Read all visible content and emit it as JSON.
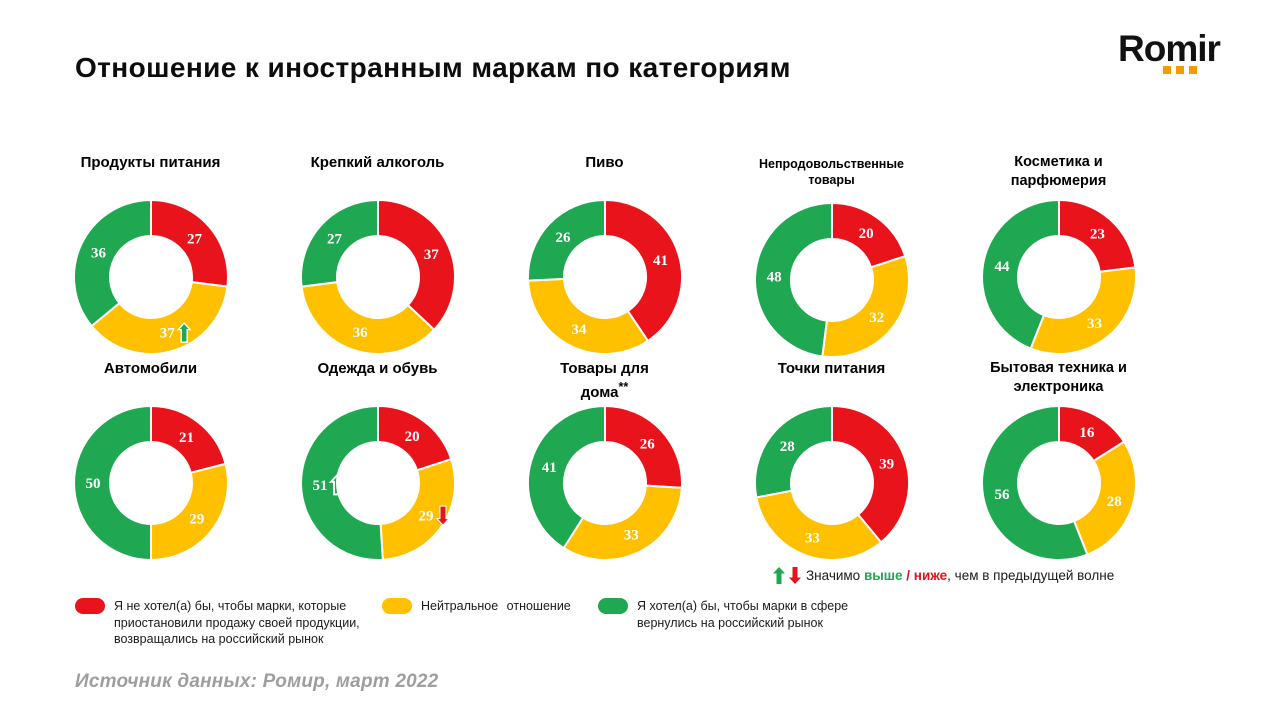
{
  "slide": {
    "title": "Отношение к иностранным маркам по категориям",
    "logo_text": "Romir",
    "source": "Источник данных: Ромир, март 2022"
  },
  "colors": {
    "negative": "#E8131B",
    "neutral": "#FFC000",
    "positive": "#1FA751",
    "logo_dot": "#F59B00"
  },
  "chart_data": {
    "type": "pie",
    "subtype": "donut-small-multiples",
    "title": "Отношение к иностранным маркам по категориям",
    "unit": "percent",
    "start_angle": "top",
    "direction": "clockwise",
    "slice_order": [
      "negative",
      "neutral",
      "positive"
    ],
    "slice_colors": {
      "negative": "#E8131B",
      "neutral": "#FFC000",
      "positive": "#1FA751"
    },
    "legend_position": "bottom",
    "charts": [
      {
        "title_lines": [
          "Продукты питания"
        ],
        "values": {
          "negative": 27,
          "neutral": 37,
          "positive": 36
        },
        "arrows": [
          {
            "slice": "neutral",
            "dir": "up",
            "style": "green-filled"
          }
        ]
      },
      {
        "title_lines": [
          "Крепкий алкоголь"
        ],
        "values": {
          "negative": 37,
          "neutral": 36,
          "positive": 27
        },
        "arrows": []
      },
      {
        "title_lines": [
          "Пиво"
        ],
        "values": {
          "negative": 41,
          "neutral": 34,
          "positive": 26
        },
        "arrows": []
      },
      {
        "title_lines": [
          "Непродовольственные",
          "товары"
        ],
        "values": {
          "negative": 20,
          "neutral": 32,
          "positive": 48
        },
        "arrows": []
      },
      {
        "title_lines": [
          "Косметика и",
          "парфюмерия"
        ],
        "values": {
          "negative": 23,
          "neutral": 33,
          "positive": 44
        },
        "arrows": []
      },
      {
        "title_lines": [
          "Автомобили"
        ],
        "values": {
          "negative": 21,
          "neutral": 29,
          "positive": 50
        },
        "arrows": []
      },
      {
        "title_lines": [
          "Одежда и обувь"
        ],
        "values": {
          "negative": 20,
          "neutral": 29,
          "positive": 51
        },
        "arrows": [
          {
            "slice": "positive",
            "dir": "up",
            "style": "outline"
          },
          {
            "slice": "neutral",
            "dir": "down",
            "style": "red-filled"
          }
        ]
      },
      {
        "title_lines": [
          "Товары для",
          "дома**"
        ],
        "values": {
          "negative": 26,
          "neutral": 33,
          "positive": 41
        },
        "arrows": []
      },
      {
        "title_lines": [
          "Точки питания"
        ],
        "values": {
          "negative": 39,
          "neutral": 33,
          "positive": 28
        },
        "arrows": []
      },
      {
        "title_lines": [
          "Бытовая техника и",
          "электроника"
        ],
        "values": {
          "negative": 16,
          "neutral": 28,
          "positive": 56
        },
        "arrows": []
      }
    ]
  },
  "note": {
    "prefix": "Значимо ",
    "higher": "выше",
    "separator": " / ",
    "lower": "ниже",
    "suffix": ", чем в  предыдущей волне"
  },
  "legend": [
    {
      "key": "negative",
      "color": "#E8131B",
      "text": "Я не хотел(а)  бы, чтобы  марки, которые приостановили   продажу своей  продукции, возвращались  на  российский  рынок"
    },
    {
      "key": "neutral",
      "color": "#FFC000",
      "text": "Нейтральное  отношение"
    },
    {
      "key": "positive",
      "color": "#1FA751",
      "text": "Я хотел(а)  бы, чтобы  марки  в сфере вернулись  на  российский  рынок"
    }
  ]
}
